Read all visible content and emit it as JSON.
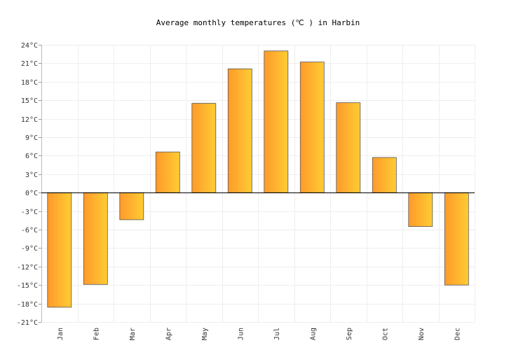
{
  "chart_data": {
    "type": "bar",
    "title": "Average monthly temperatures (℃ ) in Harbin",
    "xlabel": "",
    "ylabel": "",
    "categories": [
      "Jan",
      "Feb",
      "Mar",
      "Apr",
      "May",
      "Jun",
      "Jul",
      "Aug",
      "Sep",
      "Oct",
      "Nov",
      "Dec"
    ],
    "values": [
      -18.6,
      -14.9,
      -4.4,
      6.6,
      14.5,
      20.1,
      23.0,
      21.2,
      14.6,
      5.7,
      -5.5,
      -15.0
    ],
    "ylim": [
      -21,
      24
    ],
    "yticks": [
      24,
      21,
      18,
      15,
      12,
      9,
      6,
      3,
      0,
      -3,
      -6,
      -9,
      -12,
      -15,
      -18,
      -21
    ],
    "ytick_labels": [
      "24°C",
      "21°C",
      "18°C",
      "15°C",
      "12°C",
      "9°C",
      "6°C",
      "3°C",
      "0°C",
      "-3°C",
      "-6°C",
      "-9°C",
      "-12°C",
      "-15°C",
      "-18°C",
      "-21°C"
    ],
    "grid": true,
    "legend": "none",
    "colors": {
      "bar_left": "#ff9a2b",
      "bar_right": "#ffcc33",
      "bar_stroke": "#555555",
      "grid": "#eeeeee",
      "zero_line": "#000000"
    }
  }
}
